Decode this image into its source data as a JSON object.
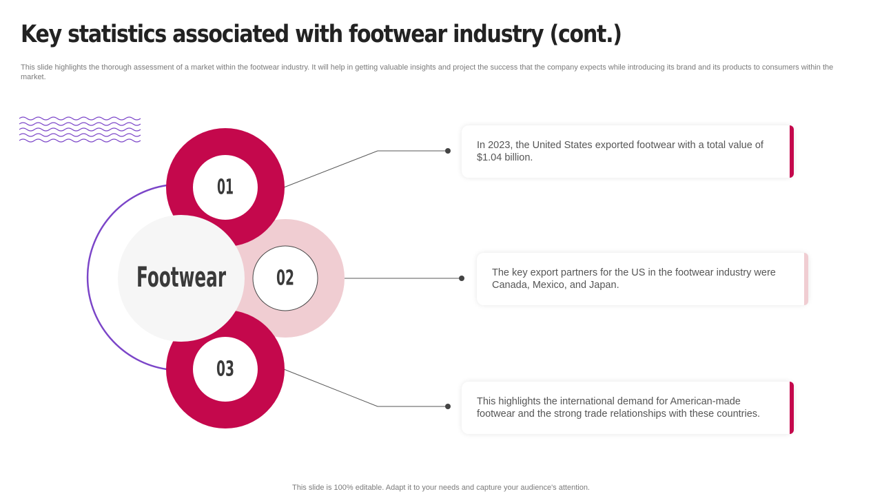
{
  "title": "Key statistics associated with footwear industry (cont.)",
  "subtitle": "This slide highlights the thorough assessment of a market within the footwear industry. It will help in getting valuable insights and project the success that the company expects while introducing its brand and its products to consumers within the market.",
  "diagram": {
    "center_label": "Footwear",
    "nodes": [
      {
        "number": "01",
        "text": "In 2023, the United States exported footwear with a total value of $1.04 billion."
      },
      {
        "number": "02",
        "text": "The key export partners for the US in the footwear industry were Canada, Mexico,  and Japan."
      },
      {
        "number": "03",
        "text": "This highlights the international demand for American-made footwear and the strong trade relationships with these countries."
      }
    ]
  },
  "colors": {
    "primary": "#C4084C",
    "light_pink": "#F0CDD2",
    "purple": "#7B45C8",
    "title_text": "#222222",
    "body_text": "#555555"
  },
  "footer": "This slide is 100% editable. Adapt it to your needs and capture your audience's attention."
}
